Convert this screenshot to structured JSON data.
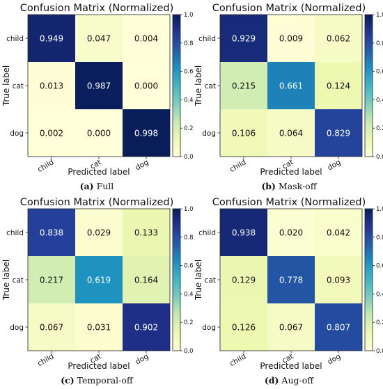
{
  "chart_data": [
    {
      "type": "heatmap",
      "title": "Confusion Matrix (Normalized)",
      "xlabel": "Predicted label",
      "ylabel": "True label",
      "x_categories": [
        "child",
        "cat",
        "dog"
      ],
      "y_categories": [
        "child",
        "cat",
        "dog"
      ],
      "values": [
        [
          0.949,
          0.047,
          0.004
        ],
        [
          0.013,
          0.987,
          0.0
        ],
        [
          0.002,
          0.0,
          0.998
        ]
      ],
      "cell_labels": [
        [
          "0.949",
          "0.047",
          "0.004"
        ],
        [
          "0.013",
          "0.987",
          "0.000"
        ],
        [
          "0.002",
          "0.000",
          "0.998"
        ]
      ],
      "colorbar_ticks": [
        "0.0",
        "0.2",
        "0.4",
        "0.6",
        "0.8",
        "1.0"
      ],
      "vmin": 0,
      "vmax": 1,
      "colormap": "YlGnBu",
      "caption_tag": "(a)",
      "caption_text": " Full"
    },
    {
      "type": "heatmap",
      "title": "Confusion Matrix (Normalized)",
      "xlabel": "Predicted label",
      "ylabel": "True label",
      "x_categories": [
        "child",
        "cat",
        "dog"
      ],
      "y_categories": [
        "child",
        "cat",
        "dog"
      ],
      "values": [
        [
          0.929,
          0.009,
          0.062
        ],
        [
          0.215,
          0.661,
          0.124
        ],
        [
          0.106,
          0.064,
          0.829
        ]
      ],
      "cell_labels": [
        [
          "0.929",
          "0.009",
          "0.062"
        ],
        [
          "0.215",
          "0.661",
          "0.124"
        ],
        [
          "0.106",
          "0.064",
          "0.829"
        ]
      ],
      "colorbar_ticks": [
        "0.0",
        "0.2",
        "0.4",
        "0.6",
        "0.8",
        "1.0"
      ],
      "vmin": 0,
      "vmax": 1,
      "colormap": "YlGnBu",
      "caption_tag": "(b)",
      "caption_text": " Mask-off"
    },
    {
      "type": "heatmap",
      "title": "Confusion Matrix (Normalized)",
      "xlabel": "Predicted label",
      "ylabel": "True label",
      "x_categories": [
        "child",
        "cat",
        "dog"
      ],
      "y_categories": [
        "child",
        "cat",
        "dog"
      ],
      "values": [
        [
          0.838,
          0.029,
          0.133
        ],
        [
          0.217,
          0.619,
          0.164
        ],
        [
          0.067,
          0.031,
          0.902
        ]
      ],
      "cell_labels": [
        [
          "0.838",
          "0.029",
          "0.133"
        ],
        [
          "0.217",
          "0.619",
          "0.164"
        ],
        [
          "0.067",
          "0.031",
          "0.902"
        ]
      ],
      "colorbar_ticks": [
        "0.0",
        "0.2",
        "0.4",
        "0.6",
        "0.8",
        "1.0"
      ],
      "vmin": 0,
      "vmax": 1,
      "colormap": "YlGnBu",
      "caption_tag": "(c)",
      "caption_text": " Temporal-off"
    },
    {
      "type": "heatmap",
      "title": "Confusion Matrix (Normalized)",
      "xlabel": "Predicted label",
      "ylabel": "True label",
      "x_categories": [
        "child",
        "cat",
        "dog"
      ],
      "y_categories": [
        "child",
        "cat",
        "dog"
      ],
      "values": [
        [
          0.938,
          0.02,
          0.042
        ],
        [
          0.129,
          0.778,
          0.093
        ],
        [
          0.126,
          0.067,
          0.807
        ]
      ],
      "cell_labels": [
        [
          "0.938",
          "0.020",
          "0.042"
        ],
        [
          "0.129",
          "0.778",
          "0.093"
        ],
        [
          "0.126",
          "0.067",
          "0.807"
        ]
      ],
      "colorbar_ticks": [
        "0.0",
        "0.2",
        "0.4",
        "0.6",
        "0.8",
        "1.0"
      ],
      "vmin": 0,
      "vmax": 1,
      "colormap": "YlGnBu",
      "caption_tag": "(d)",
      "caption_text": " Aug-off"
    }
  ]
}
